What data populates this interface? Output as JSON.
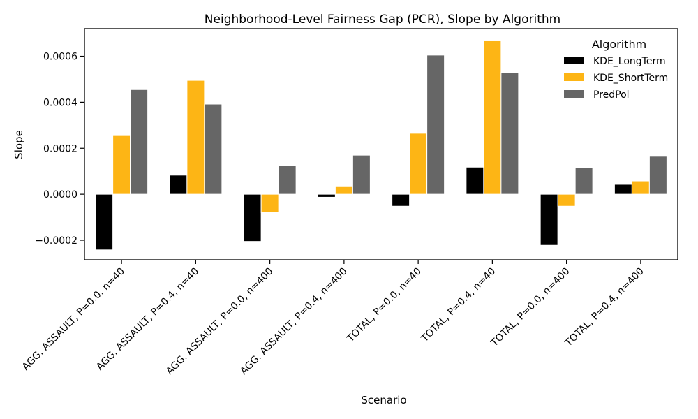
{
  "chart_data": {
    "type": "bar",
    "title": "Neighborhood-Level Fairness Gap (PCR), Slope by Algorithm",
    "xlabel": "Scenario",
    "ylabel": "Slope",
    "ylim": [
      -0.000285,
      0.00072
    ],
    "yticks": [
      -0.0002,
      0.0,
      0.0002,
      0.0004,
      0.0006
    ],
    "ytick_labels": [
      "−0.0002",
      "0.0000",
      "0.0002",
      "0.0004",
      "0.0006"
    ],
    "categories": [
      "AGG. ASSAULT, P=0.0, n=40",
      "AGG. ASSAULT, P=0.4, n=40",
      "AGG. ASSAULT, P=0.0, n=400",
      "AGG. ASSAULT, P=0.4, n=400",
      "TOTAL, P=0.0, n=40",
      "TOTAL, P=0.4, n=40",
      "TOTAL, P=0.0, n=400",
      "TOTAL, P=0.4, n=400"
    ],
    "legend_title": "Algorithm",
    "legend_position": "top-right",
    "series": [
      {
        "name": "KDE_LongTerm",
        "color": "#000000",
        "values": [
          -0.000242,
          8.3e-05,
          -0.000205,
          -1.3e-05,
          -5.2e-05,
          0.000118,
          -0.000222,
          4.3e-05
        ]
      },
      {
        "name": "KDE_ShortTerm",
        "color": "#FDB515",
        "values": [
          0.000255,
          0.000495,
          -8e-05,
          3.3e-05,
          0.000265,
          0.00067,
          -5.2e-05,
          5.8e-05
        ]
      },
      {
        "name": "PredPol",
        "color": "#666666",
        "values": [
          0.000455,
          0.000392,
          0.000125,
          0.00017,
          0.000605,
          0.00053,
          0.000115,
          0.000165
        ]
      }
    ]
  }
}
